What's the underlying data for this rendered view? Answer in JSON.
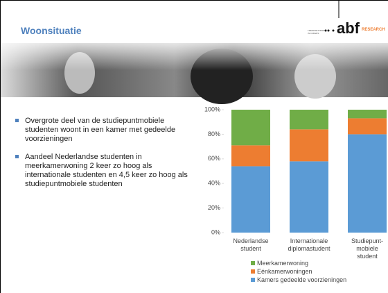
{
  "header": {
    "title": "Woonsituatie",
    "logo": "abf",
    "logo_suffix": "RESEARCH",
    "tagline": "TRENDSETTEND\nIN CIJFERS"
  },
  "bullets": [
    "Overgrote deel van de studiepuntmobiele studenten woont in een kamer met gedeelde voorzieningen",
    "Aandeel Nederlandse studenten in meerkamerwoning 2 keer zo hoog als internationale studenten en 4,5 keer zo hoog als studiepuntmobiele studenten"
  ],
  "chart_data": {
    "type": "stacked_bar",
    "categories": [
      "Nederlandse\nstudent",
      "Internationale\ndiplomastudent",
      "Studiepunt-\nmobiele\nstudent"
    ],
    "series": [
      {
        "name": "Kamers gedeelde voorzieningen",
        "color": "#5b9bd5",
        "values": [
          54,
          58,
          80
        ]
      },
      {
        "name": "Eénkamerwoningen",
        "color": "#ed7d31",
        "values": [
          17,
          26,
          13
        ]
      },
      {
        "name": "Meerkamerwoning",
        "color": "#70ad47",
        "values": [
          29,
          16,
          7
        ]
      }
    ],
    "ylim": [
      0,
      100
    ],
    "yticks": [
      {
        "value": 0,
        "label": "0%"
      },
      {
        "value": 20,
        "label": "20%"
      },
      {
        "value": 40,
        "label": "40%"
      },
      {
        "value": 60,
        "label": "60%"
      },
      {
        "value": 80,
        "label": "80%"
      },
      {
        "value": 100,
        "label": "100%"
      }
    ],
    "legend": "bottom"
  }
}
